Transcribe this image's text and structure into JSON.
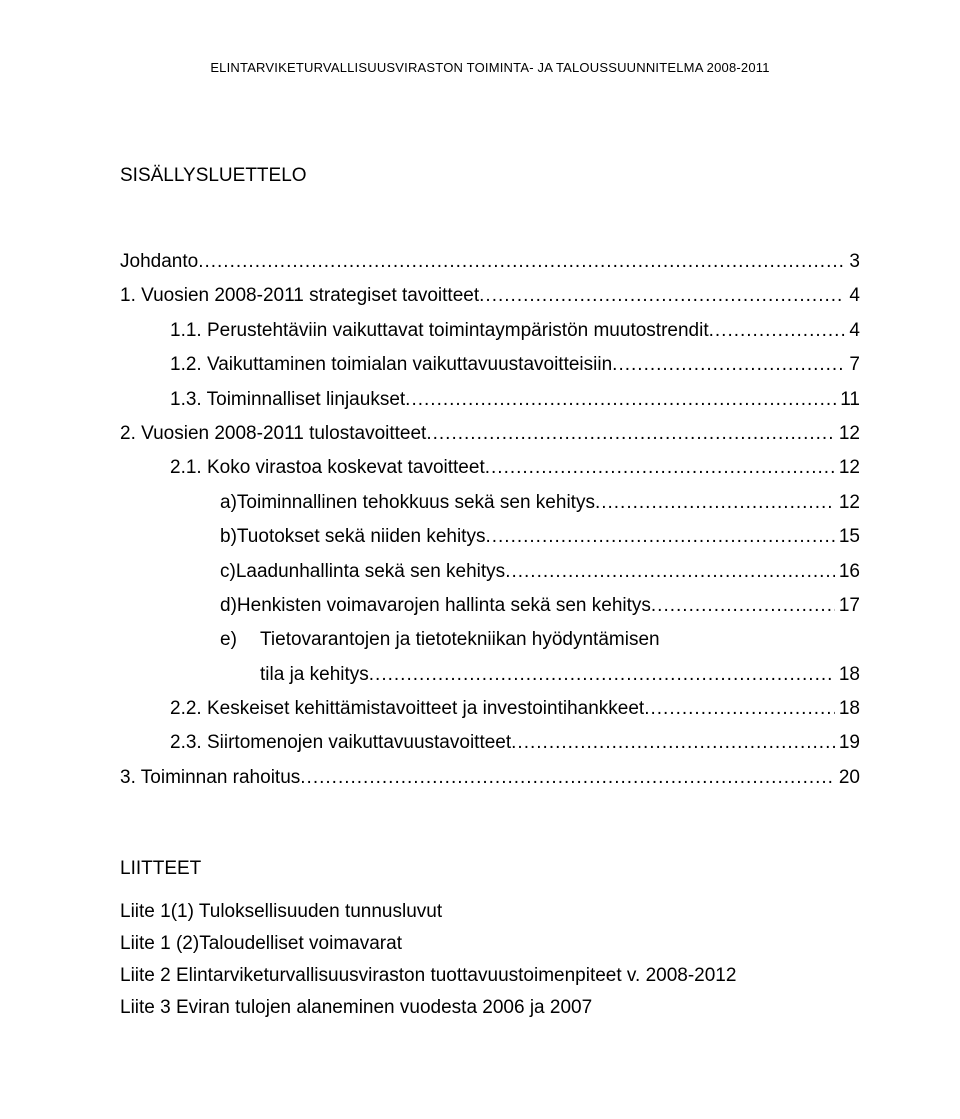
{
  "header": "ELINTARVIKETURVALLISUUSVIRASTON TOIMINTA- JA TALOUSSUUNNITELMA 2008-2011",
  "toc_title": "SISÄLLYSLUETTELO",
  "entries": [
    {
      "indent": 0,
      "label": "Johdanto",
      "page": "3"
    },
    {
      "indent": 1,
      "label": "1. Vuosien 2008-2011 strategiset tavoitteet",
      "page": "4"
    },
    {
      "indent": 2,
      "label": "1.1. Perustehtäviin vaikuttavat toimintaympäristön muutostrendit",
      "page": "4"
    },
    {
      "indent": 2,
      "label": "1.2. Vaikuttaminen toimialan vaikuttavuustavoitteisiin",
      "page": "7"
    },
    {
      "indent": 2,
      "label": "1.3. Toiminnalliset linjaukset",
      "page": "11"
    },
    {
      "indent": 1,
      "label": "2. Vuosien 2008-2011 tulostavoitteet",
      "page": "12"
    },
    {
      "indent": 2,
      "label": "2.1. Koko virastoa koskevat tavoitteet",
      "page": "12"
    },
    {
      "indent": 3,
      "letter": "a)",
      "label": "Toiminnallinen tehokkuus sekä sen kehitys",
      "page": "12"
    },
    {
      "indent": 3,
      "letter": "b)",
      "label": "Tuotokset sekä niiden kehitys",
      "page": "15"
    },
    {
      "indent": 3,
      "letter": "c)",
      "label": "Laadunhallinta sekä sen kehitys",
      "page": "16"
    },
    {
      "indent": 3,
      "letter": "d)",
      "label": "Henkisten voimavarojen hallinta sekä sen kehitys",
      "page": "17"
    },
    {
      "indent": 3,
      "letter": "e)",
      "label": "Tietovarantojen ja tietotekniikan hyödyntämisen",
      "label2": "tila ja kehitys",
      "page": "18"
    },
    {
      "indent": 2,
      "label": "2.2. Keskeiset kehittämistavoitteet ja investointihankkeet",
      "page": "18"
    },
    {
      "indent": 2,
      "label": "2.3. Siirtomenojen vaikuttavuustavoitteet",
      "page": "19"
    },
    {
      "indent": 1,
      "label": "3. Toiminnan rahoitus",
      "page": "20"
    }
  ],
  "attachments_title": "LIITTEET",
  "attachments": [
    "Liite 1(1) Tuloksellisuuden tunnusluvut",
    "Liite 1 (2)Taloudelliset voimavarat",
    "Liite 2 Elintarviketurvallisuusviraston tuottavuustoimenpiteet v. 2008-2012",
    "Liite 3 Eviran tulojen alaneminen vuodesta 2006 ja 2007"
  ],
  "dots": "...................................................................................................................................................."
}
